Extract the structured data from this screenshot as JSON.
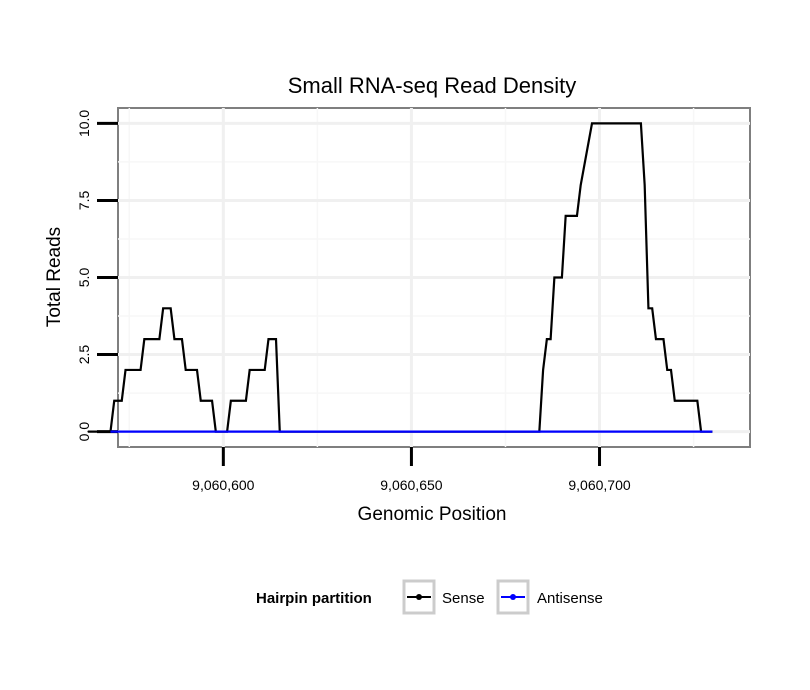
{
  "chart_data": {
    "type": "line",
    "title": "Small RNA-seq Read Density",
    "xlabel": "Genomic Position",
    "ylabel": "Total Reads",
    "xlim": [
      9060572,
      9060740
    ],
    "ylim": [
      -0.5,
      10.5
    ],
    "x_ticks": [
      9060600,
      9060650,
      9060700
    ],
    "x_tick_labels": [
      "9,060,600",
      "9,060,650",
      "9,060,700"
    ],
    "y_ticks": [
      0,
      2.5,
      5,
      7.5,
      10
    ],
    "y_tick_labels": [
      "0.0",
      "2.5",
      "5.0",
      "7.5",
      "10.0"
    ],
    "grid": true,
    "legend": {
      "title": "Hairpin partition",
      "position": "bottom",
      "entries": [
        "Sense",
        "Antisense"
      ]
    },
    "series": [
      {
        "name": "Sense",
        "color": "#000000",
        "x": [
          9060564,
          9060570,
          9060571,
          9060573,
          9060574,
          9060578,
          9060579,
          9060583,
          9060584,
          9060586,
          9060587,
          9060589,
          9060590,
          9060593,
          9060594,
          9060597,
          9060598,
          9060601,
          9060602,
          9060606,
          9060607,
          9060611,
          9060612,
          9060614,
          9060615,
          9060684,
          9060685,
          9060686,
          9060687,
          9060688,
          9060690,
          9060691,
          9060692,
          9060694,
          9060695,
          9060698,
          9060699,
          9060711,
          9060712,
          9060713,
          9060714,
          9060715,
          9060717,
          9060718,
          9060719,
          9060720,
          9060722,
          9060723,
          9060726,
          9060727,
          9060730
        ],
        "y": [
          0,
          0,
          1,
          1,
          2,
          2,
          3,
          3,
          4,
          4,
          3,
          3,
          2,
          2,
          1,
          1,
          0,
          0,
          1,
          1,
          2,
          2,
          3,
          3,
          0,
          0,
          2,
          3,
          3,
          5,
          5,
          7,
          7,
          7,
          8,
          10,
          10,
          10,
          8,
          4,
          4,
          3,
          3,
          2,
          2,
          1,
          1,
          1,
          1,
          0,
          0
        ]
      },
      {
        "name": "Antisense",
        "color": "#0000ff",
        "x": [
          9060570,
          9060730
        ],
        "y": [
          0,
          0
        ]
      }
    ]
  }
}
